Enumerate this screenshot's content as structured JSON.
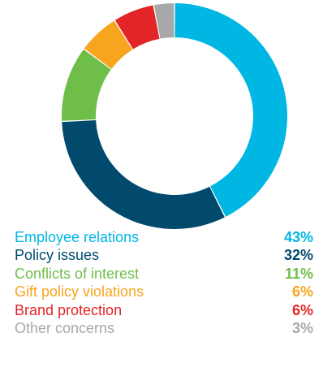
{
  "chart_data": {
    "type": "pie",
    "donut": true,
    "categories": [
      "Employee relations",
      "Policy issues",
      "Conflicts of interest",
      "Gift policy violations",
      "Brand protection",
      "Other concerns"
    ],
    "values": [
      43,
      32,
      11,
      6,
      6,
      3
    ],
    "value_labels": [
      "43%",
      "32%",
      "11%",
      "6%",
      "6%",
      "3%"
    ],
    "colors": [
      "#00b7e4",
      "#014a6e",
      "#6fbe4a",
      "#f7a51e",
      "#e42527",
      "#a8a8aa"
    ],
    "start_angle": "12 o'clock",
    "direction": "clockwise",
    "legend_placement": "bottom"
  }
}
